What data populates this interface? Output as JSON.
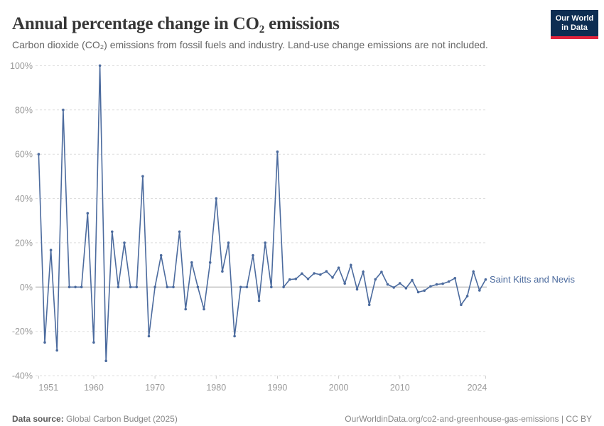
{
  "header": {
    "logo": {
      "line1": "Our World",
      "line2": "in Data"
    }
  },
  "chart_data": {
    "type": "line",
    "title": "Annual percentage change in CO₂ emissions",
    "subtitle": "Carbon dioxide (CO₂) emissions from fossil fuels and industry. Land-use change emissions are not included.",
    "xlabel": "",
    "ylabel": "",
    "unit": "%",
    "xlim": [
      1951,
      2024
    ],
    "ylim": [
      -40,
      100
    ],
    "grid": "horizontal-dashed",
    "legend_position": "end-of-line-label",
    "x_ticks": [
      {
        "year": 1951,
        "label": "1951"
      },
      {
        "year": 1960,
        "label": "1960"
      },
      {
        "year": 1970,
        "label": "1970"
      },
      {
        "year": 1980,
        "label": "1980"
      },
      {
        "year": 1990,
        "label": "1990"
      },
      {
        "year": 2000,
        "label": "2000"
      },
      {
        "year": 2010,
        "label": "2010"
      },
      {
        "year": 2024,
        "label": "2024"
      }
    ],
    "y_ticks": [
      {
        "value": 100,
        "label": "100%"
      },
      {
        "value": 80,
        "label": "80%"
      },
      {
        "value": 60,
        "label": "60%"
      },
      {
        "value": 40,
        "label": "40%"
      },
      {
        "value": 20,
        "label": "20%"
      },
      {
        "value": 0,
        "label": "0%"
      },
      {
        "value": -20,
        "label": "-20%"
      },
      {
        "value": -40,
        "label": "-40%"
      }
    ],
    "series": [
      {
        "name": "Saint Kitts and Nevis",
        "color": "#4c6b9e",
        "points": [
          [
            1951,
            60
          ],
          [
            1952,
            -25
          ],
          [
            1953,
            16.7
          ],
          [
            1954,
            -28.6
          ],
          [
            1955,
            80
          ],
          [
            1956,
            0
          ],
          [
            1957,
            0
          ],
          [
            1958,
            0
          ],
          [
            1959,
            33.3
          ],
          [
            1960,
            -25
          ],
          [
            1961,
            100
          ],
          [
            1962,
            -33.3
          ],
          [
            1963,
            25
          ],
          [
            1964,
            0
          ],
          [
            1965,
            20
          ],
          [
            1966,
            0
          ],
          [
            1967,
            0
          ],
          [
            1968,
            50
          ],
          [
            1969,
            -22.2
          ],
          [
            1970,
            0
          ],
          [
            1971,
            14.3
          ],
          [
            1972,
            0
          ],
          [
            1973,
            0
          ],
          [
            1974,
            25
          ],
          [
            1975,
            -10
          ],
          [
            1976,
            11.1
          ],
          [
            1977,
            0
          ],
          [
            1978,
            -10
          ],
          [
            1979,
            11.1
          ],
          [
            1980,
            40
          ],
          [
            1981,
            7.1
          ],
          [
            1982,
            20
          ],
          [
            1983,
            -22.2
          ],
          [
            1984,
            0
          ],
          [
            1985,
            0
          ],
          [
            1986,
            14.3
          ],
          [
            1987,
            -6.2
          ],
          [
            1988,
            20
          ],
          [
            1989,
            0
          ],
          [
            1990,
            61.1
          ],
          [
            1991,
            0
          ],
          [
            1992,
            3.4
          ],
          [
            1993,
            3.7
          ],
          [
            1994,
            6.1
          ],
          [
            1995,
            3.7
          ],
          [
            1996,
            6.2
          ],
          [
            1997,
            5.6
          ],
          [
            1998,
            7.1
          ],
          [
            1999,
            4.3
          ],
          [
            2000,
            8.7
          ],
          [
            2001,
            1.6
          ],
          [
            2002,
            9.9
          ],
          [
            2003,
            -1.0
          ],
          [
            2004,
            6.9
          ],
          [
            2005,
            -8.0
          ],
          [
            2006,
            3.5
          ],
          [
            2007,
            6.8
          ],
          [
            2008,
            1.2
          ],
          [
            2009,
            -0.2
          ],
          [
            2010,
            1.7
          ],
          [
            2011,
            -0.5
          ],
          [
            2012,
            3.1
          ],
          [
            2013,
            -2.3
          ],
          [
            2014,
            -1.6
          ],
          [
            2015,
            0.3
          ],
          [
            2016,
            1.2
          ],
          [
            2017,
            1.5
          ],
          [
            2018,
            2.5
          ],
          [
            2019,
            4.0
          ],
          [
            2020,
            -8.0
          ],
          [
            2021,
            -4.1
          ],
          [
            2022,
            7.0
          ],
          [
            2023,
            -1.5
          ],
          [
            2024,
            3.4
          ]
        ]
      }
    ]
  },
  "footer": {
    "source_label": "Data source:",
    "source_text": "Global Carbon Budget (2025)",
    "credit": "OurWorldinData.org/co2-and-greenhouse-gas-emissions | CC BY"
  }
}
